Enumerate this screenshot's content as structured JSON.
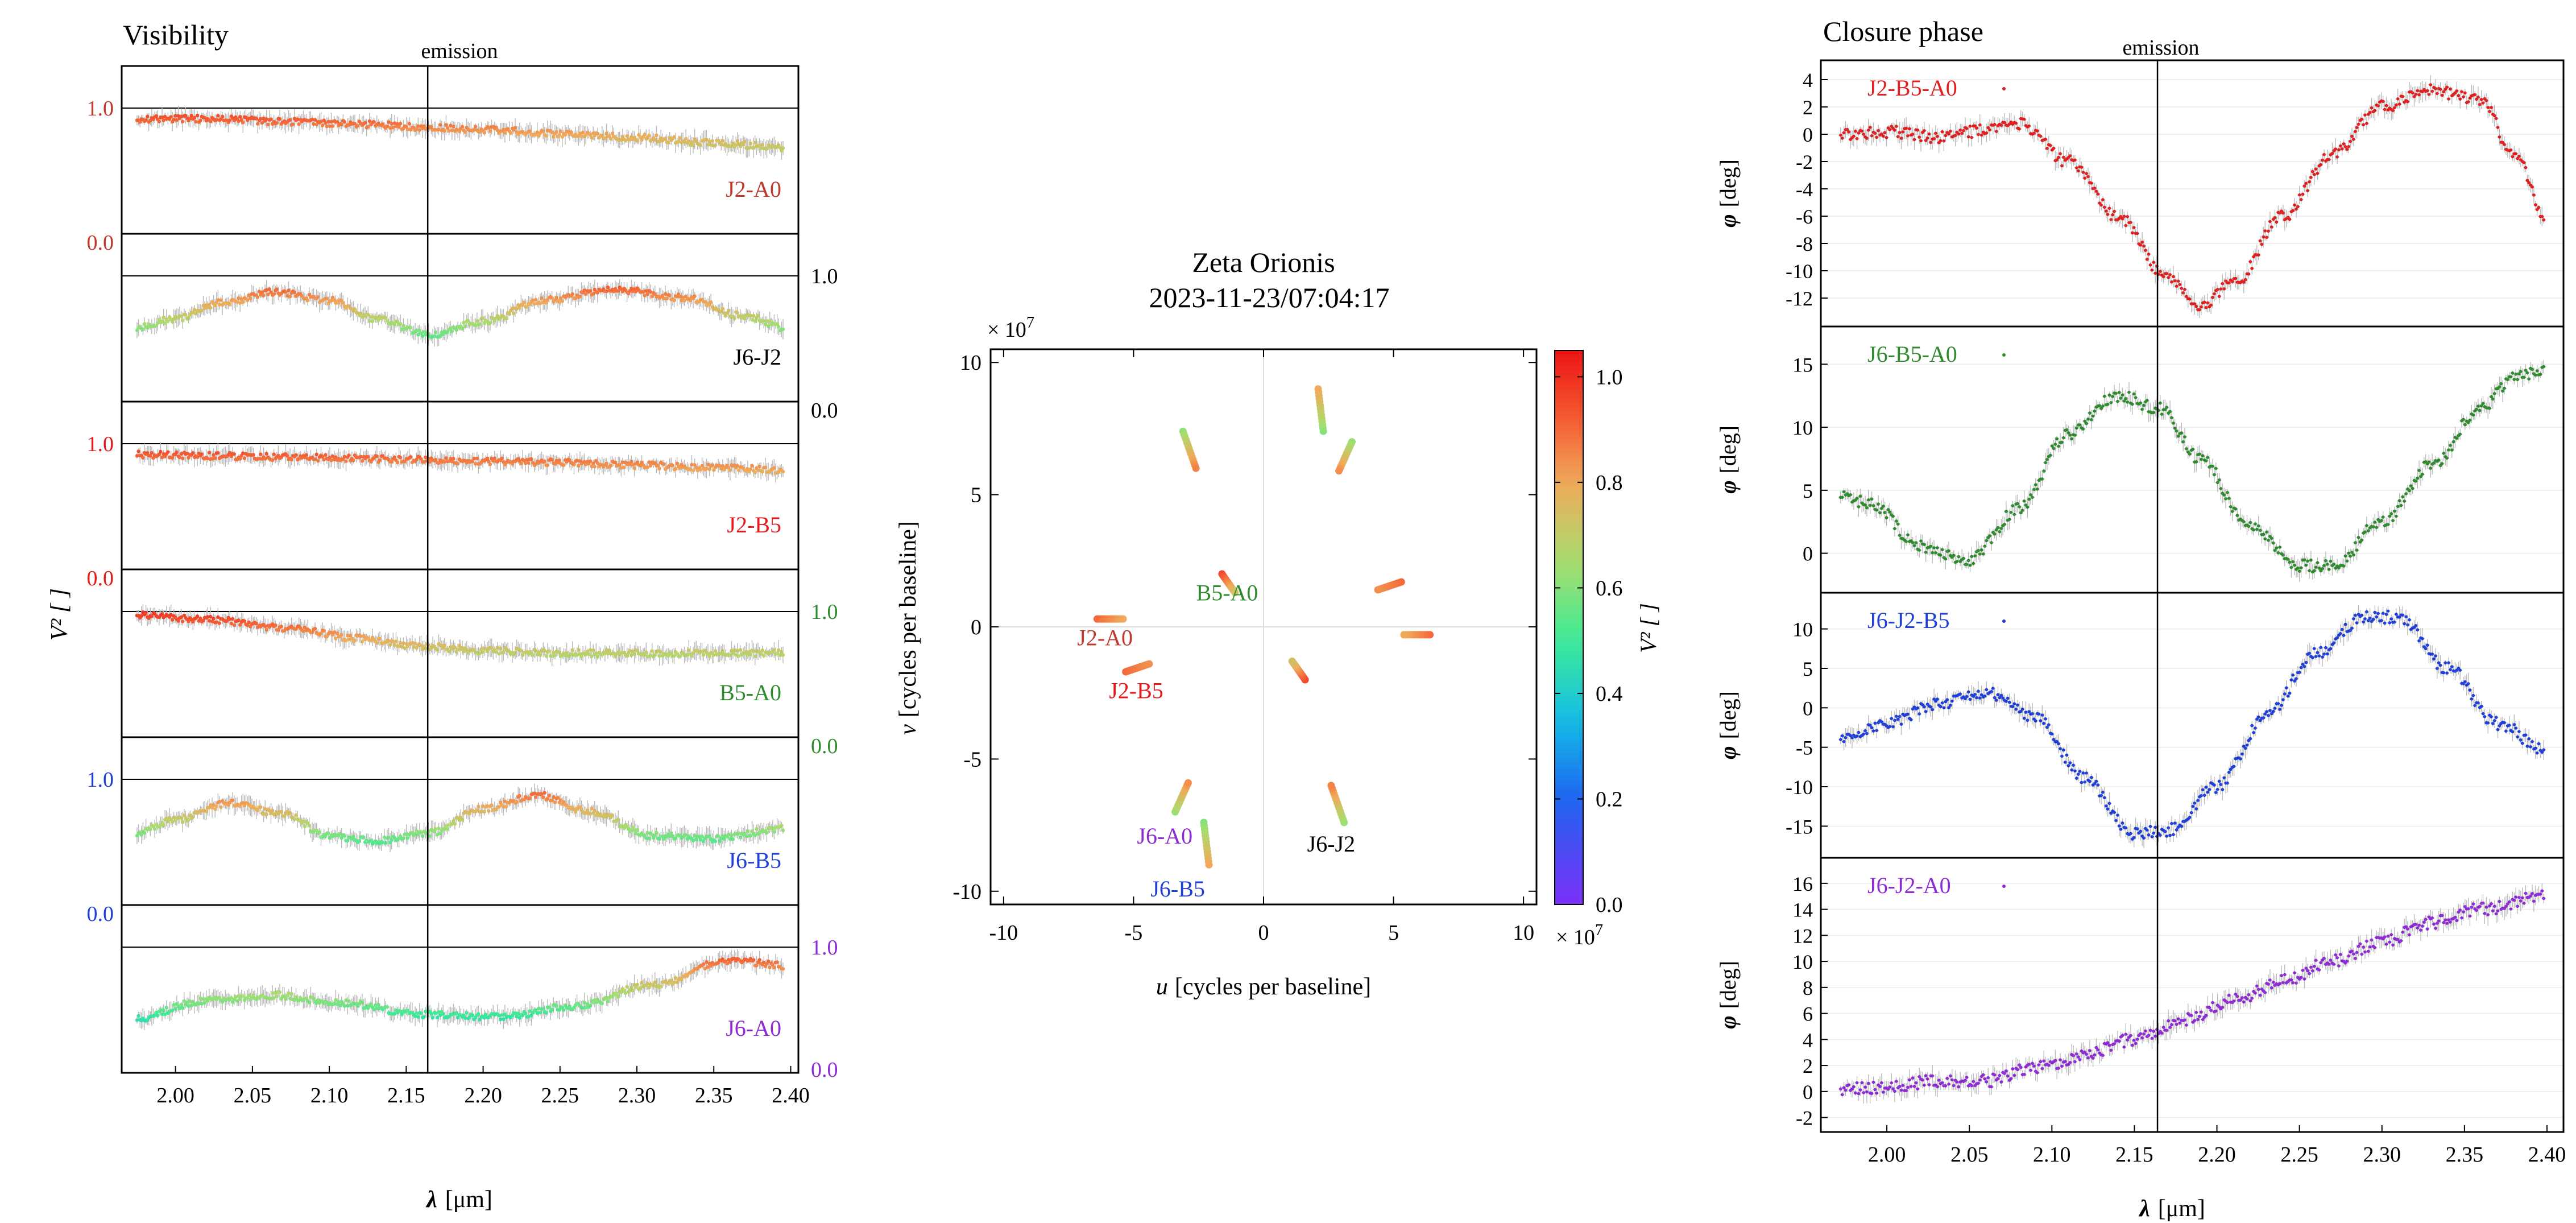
{
  "colors": {
    "J2-A0": "#c0392b",
    "J6-J2": "#000000",
    "J2-B5": "#e41a1c",
    "B5-A0": "#2e8b2e",
    "J6-B5": "#1f3fd8",
    "J6-A0": "#8e2bd6",
    "error": "#b8b8b8",
    "frame": "#000000"
  },
  "chart_data": [
    {
      "type": "scatter",
      "panel": "visibility",
      "title": "Visibility",
      "annotation": "emission",
      "emission_line_x": 2.164,
      "xlabel_sym": "λ",
      "xlabel_unit": "[μm]",
      "ylabel": "V² [ ]",
      "xlim": [
        1.965,
        2.405
      ],
      "xticks": [
        "2.00",
        "2.05",
        "2.10",
        "2.15",
        "2.20",
        "2.25",
        "2.30",
        "2.35",
        "2.40"
      ],
      "xtick_values": [
        2.0,
        2.05,
        2.1,
        2.15,
        2.2,
        2.25,
        2.3,
        2.35,
        2.4
      ],
      "series": [
        {
          "name": "J2-A0",
          "axis_side": "left",
          "axis_top": "1.0",
          "axis_bottom": "0.0",
          "x": [
            1.97,
            2.02,
            2.07,
            2.12,
            2.16,
            2.2,
            2.25,
            2.3,
            2.35,
            2.4
          ],
          "values": [
            0.92,
            0.92,
            0.9,
            0.88,
            0.86,
            0.84,
            0.81,
            0.78,
            0.74,
            0.7
          ]
        },
        {
          "name": "J6-J2",
          "axis_side": "right",
          "axis_top": "1.0",
          "axis_bottom": "0.0",
          "x": [
            1.97,
            2.0,
            2.03,
            2.065,
            2.1,
            2.13,
            2.165,
            2.2,
            2.24,
            2.285,
            2.33,
            2.37,
            2.4
          ],
          "values": [
            0.6,
            0.68,
            0.8,
            0.88,
            0.82,
            0.68,
            0.56,
            0.66,
            0.82,
            0.9,
            0.84,
            0.7,
            0.6
          ]
        },
        {
          "name": "J2-B5",
          "axis_side": "left",
          "axis_top": "1.0",
          "axis_bottom": "0.0",
          "x": [
            1.97,
            2.02,
            2.07,
            2.12,
            2.16,
            2.2,
            2.25,
            2.3,
            2.35,
            2.4
          ],
          "values": [
            0.92,
            0.91,
            0.9,
            0.89,
            0.88,
            0.87,
            0.86,
            0.84,
            0.82,
            0.8
          ]
        },
        {
          "name": "B5-A0",
          "axis_side": "right",
          "axis_top": "1.0",
          "axis_bottom": "0.0",
          "x": [
            1.97,
            2.02,
            2.07,
            2.12,
            2.16,
            2.2,
            2.25,
            2.3,
            2.35,
            2.4
          ],
          "values": [
            0.98,
            0.94,
            0.88,
            0.8,
            0.74,
            0.71,
            0.69,
            0.69,
            0.69,
            0.69
          ]
        },
        {
          "name": "J6-B5",
          "axis_side": "left",
          "axis_top": "1.0",
          "axis_bottom": "0.0",
          "x": [
            1.97,
            2.0,
            2.035,
            2.07,
            2.1,
            2.13,
            2.165,
            2.2,
            2.235,
            2.27,
            2.31,
            2.35,
            2.4
          ],
          "values": [
            0.58,
            0.7,
            0.82,
            0.74,
            0.58,
            0.54,
            0.6,
            0.78,
            0.88,
            0.76,
            0.58,
            0.56,
            0.64
          ]
        },
        {
          "name": "J6-A0",
          "axis_side": "right",
          "axis_top": "1.0",
          "axis_bottom": "0.0",
          "x": [
            1.97,
            2.02,
            2.065,
            2.11,
            2.16,
            2.21,
            2.26,
            2.31,
            2.36,
            2.4
          ],
          "values": [
            0.46,
            0.6,
            0.64,
            0.58,
            0.5,
            0.48,
            0.56,
            0.72,
            0.9,
            0.86
          ]
        }
      ]
    },
    {
      "type": "scatter",
      "panel": "uv-coverage",
      "title": "Zeta Orionis",
      "subtitle": "2023-11-23/07:04:17",
      "xlabel_sym": "u",
      "xlabel_unit": "[cycles per baseline]",
      "ylabel_sym": "v",
      "ylabel_unit": "[cycles per baseline]",
      "multiplier_base": "× 10",
      "multiplier_exp": "7",
      "xlim": [
        -10.5,
        10.5
      ],
      "ylim": [
        -10.5,
        10.5
      ],
      "xticks": [
        "-10",
        "-5",
        "0",
        "5",
        "10"
      ],
      "xtick_values": [
        -10,
        -5,
        0,
        5,
        10
      ],
      "yticks": [
        "-10",
        "-5",
        "0",
        "5",
        "10"
      ],
      "ytick_values": [
        -10,
        -5,
        0,
        5,
        10
      ],
      "colorbar_label": "V² [ ]",
      "colorbar_ticks": [
        "0.0",
        "0.2",
        "0.4",
        "0.6",
        "0.8",
        "1.0"
      ],
      "colorbar_tick_values": [
        0.0,
        0.2,
        0.4,
        0.6,
        0.8,
        1.0
      ],
      "colorbar_range": [
        0.0,
        1.05
      ],
      "tracks": [
        {
          "u1": -6.4,
          "v1": 0.3,
          "u2": -5.4,
          "v2": 0.3,
          "v2_start": 0.9,
          "v2_end": 0.8
        },
        {
          "u1": 6.4,
          "v1": -0.3,
          "u2": 5.4,
          "v2": -0.3,
          "v2_start": 0.9,
          "v2_end": 0.8
        },
        {
          "u1": -3.1,
          "v1": 7.4,
          "u2": -2.6,
          "v2": 6.0,
          "v2_start": 0.62,
          "v2_end": 0.86
        },
        {
          "u1": 3.1,
          "v1": -7.4,
          "u2": 2.6,
          "v2": -6.0,
          "v2_start": 0.62,
          "v2_end": 0.86
        },
        {
          "u1": -5.3,
          "v1": -1.7,
          "u2": -4.4,
          "v2": -1.4,
          "v2_start": 0.9,
          "v2_end": 0.84
        },
        {
          "u1": 5.3,
          "v1": 1.7,
          "u2": 4.4,
          "v2": 1.4,
          "v2_start": 0.9,
          "v2_end": 0.84
        },
        {
          "u1": -1.6,
          "v1": 2.0,
          "u2": -1.1,
          "v2": 1.3,
          "v2_start": 0.96,
          "v2_end": 0.74
        },
        {
          "u1": 1.6,
          "v1": -2.0,
          "u2": 1.1,
          "v2": -1.3,
          "v2_start": 0.96,
          "v2_end": 0.74
        },
        {
          "u1": -2.3,
          "v1": -7.4,
          "u2": -2.1,
          "v2": -9.0,
          "v2_start": 0.6,
          "v2_end": 0.8
        },
        {
          "u1": 2.3,
          "v1": 7.4,
          "u2": 2.1,
          "v2": 9.0,
          "v2_start": 0.6,
          "v2_end": 0.8
        },
        {
          "u1": -3.4,
          "v1": -7.0,
          "u2": -2.9,
          "v2": -5.9,
          "v2_start": 0.62,
          "v2_end": 0.84
        },
        {
          "u1": 3.4,
          "v1": 7.0,
          "u2": 2.9,
          "v2": 5.9,
          "v2_start": 0.62,
          "v2_end": 0.84
        }
      ],
      "labels": [
        {
          "text": "J2-A0",
          "u": -6.1,
          "v": -0.7
        },
        {
          "text": "J2-B5",
          "u": -4.9,
          "v": -2.7
        },
        {
          "text": "B5-A0",
          "u": -1.4,
          "v": 1.0
        },
        {
          "text": "J6-A0",
          "u": -3.8,
          "v": -8.2
        },
        {
          "text": "J6-B5",
          "u": -3.3,
          "v": -10.2
        },
        {
          "text": "J6-J2",
          "u": 2.6,
          "v": -8.5
        }
      ]
    },
    {
      "type": "scatter",
      "panel": "closure-phase",
      "title": "Closure phase",
      "annotation": "emission",
      "emission_line_x": 2.164,
      "xlabel_sym": "λ",
      "xlabel_unit": "[μm]",
      "ylabel_sym": "φ",
      "ylabel_unit": "[deg]",
      "xlim": [
        1.96,
        2.41
      ],
      "xticks": [
        "2.00",
        "2.05",
        "2.10",
        "2.15",
        "2.20",
        "2.25",
        "2.30",
        "2.35",
        "2.40"
      ],
      "xtick_values": [
        2.0,
        2.05,
        2.1,
        2.15,
        2.2,
        2.25,
        2.3,
        2.35,
        2.4
      ],
      "series": [
        {
          "name": "J2-B5-A0",
          "ylim": [
            -13.5,
            4.5
          ],
          "yticks": [
            "4",
            "2",
            "0",
            "-2",
            "-4",
            "-6",
            "-8",
            "-10",
            "-12"
          ],
          "ytick_values": [
            4,
            2,
            0,
            -2,
            -4,
            -6,
            -8,
            -10,
            -12
          ],
          "x": [
            1.97,
            2.0,
            2.03,
            2.05,
            2.08,
            2.11,
            2.14,
            2.17,
            2.19,
            2.21,
            2.24,
            2.27,
            2.3,
            2.33,
            2.36,
            2.38,
            2.4
          ],
          "values": [
            0.0,
            0.2,
            -0.2,
            0.2,
            0.8,
            -2.0,
            -6.0,
            -10.5,
            -12.5,
            -11.0,
            -6.0,
            -1.5,
            2.0,
            3.2,
            2.5,
            -1.5,
            -6.0
          ]
        },
        {
          "name": "J6-B5-A0",
          "ylim": [
            -2.5,
            17.0
          ],
          "yticks": [
            "15",
            "10",
            "5",
            "0"
          ],
          "ytick_values": [
            15,
            10,
            5,
            0
          ],
          "x": [
            1.97,
            1.99,
            2.02,
            2.05,
            2.08,
            2.11,
            2.14,
            2.165,
            2.19,
            2.22,
            2.25,
            2.27,
            2.3,
            2.33,
            2.36,
            2.38,
            2.4
          ],
          "values": [
            4.5,
            4.0,
            0.5,
            -0.5,
            3.5,
            9.5,
            12.5,
            11.5,
            7.5,
            2.0,
            -1.0,
            -1.0,
            2.5,
            7.0,
            11.5,
            14.0,
            14.5
          ]
        },
        {
          "name": "J6-J2-B5",
          "ylim": [
            -18.0,
            13.0
          ],
          "yticks": [
            "10",
            "5",
            "0",
            "-5",
            "-10",
            "-15"
          ],
          "ytick_values": [
            10,
            5,
            0,
            -5,
            -10,
            -15
          ],
          "x": [
            1.97,
            2.0,
            2.03,
            2.06,
            2.09,
            2.12,
            2.15,
            2.17,
            2.2,
            2.23,
            2.26,
            2.29,
            2.31,
            2.34,
            2.37,
            2.4
          ],
          "values": [
            -4.0,
            -2.0,
            0.5,
            2.0,
            -1.0,
            -9.0,
            -16.0,
            -15.5,
            -10.0,
            -1.0,
            7.0,
            11.5,
            11.5,
            5.0,
            -2.0,
            -5.5
          ]
        },
        {
          "name": "J6-J2-A0",
          "ylim": [
            -2.5,
            17.0
          ],
          "yticks": [
            "16",
            "14",
            "12",
            "10",
            "8",
            "6",
            "4",
            "2",
            "0",
            "-2"
          ],
          "ytick_values": [
            16,
            14,
            12,
            10,
            8,
            6,
            4,
            2,
            0,
            -2
          ],
          "x": [
            1.97,
            2.0,
            2.03,
            2.06,
            2.09,
            2.12,
            2.15,
            2.18,
            2.21,
            2.24,
            2.27,
            2.3,
            2.33,
            2.36,
            2.4
          ],
          "values": [
            0.2,
            0.3,
            0.8,
            0.8,
            1.8,
            2.8,
            4.0,
            5.5,
            7.0,
            8.5,
            10.0,
            11.5,
            13.0,
            14.0,
            15.0
          ]
        }
      ]
    }
  ]
}
